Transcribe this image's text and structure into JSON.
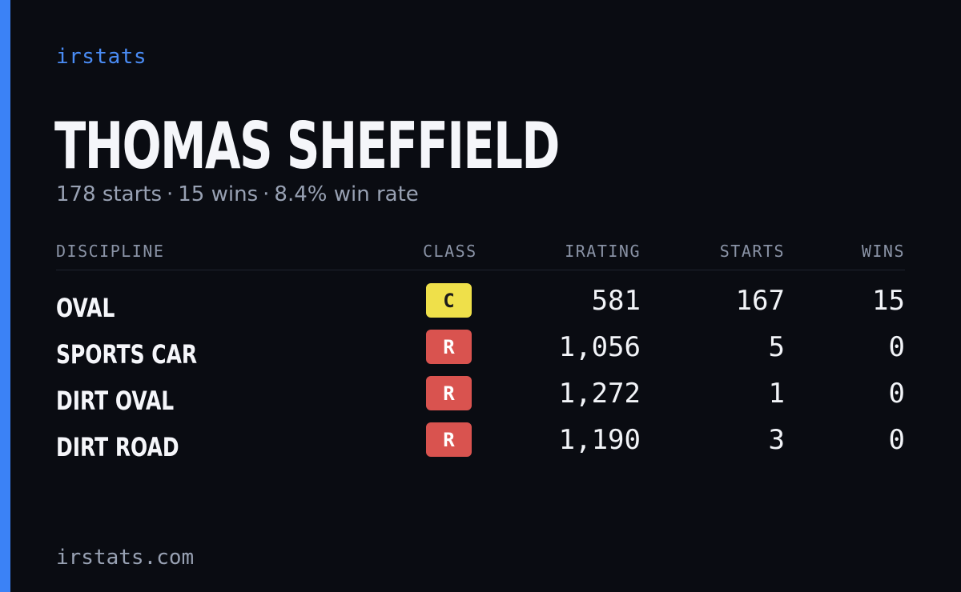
{
  "brand": "irstats",
  "driver": {
    "name": "THOMAS SHEFFIELD",
    "starts_text": "178 starts",
    "wins_text": "15 wins",
    "win_rate_text": "8.4% win rate",
    "separator": "·"
  },
  "table": {
    "headers": {
      "discipline": "DISCIPLINE",
      "class": "CLASS",
      "irating": "IRATING",
      "starts": "STARTS",
      "wins": "WINS"
    },
    "rows": [
      {
        "discipline": "OVAL",
        "class": "C",
        "irating": "581",
        "starts": "167",
        "wins": "15"
      },
      {
        "discipline": "SPORTS CAR",
        "class": "R",
        "irating": "1,056",
        "starts": "5",
        "wins": "0"
      },
      {
        "discipline": "DIRT OVAL",
        "class": "R",
        "irating": "1,272",
        "starts": "1",
        "wins": "0"
      },
      {
        "discipline": "DIRT ROAD",
        "class": "R",
        "irating": "1,190",
        "starts": "3",
        "wins": "0"
      }
    ]
  },
  "footer": "irstats.com",
  "colors": {
    "accent": "#3b82f6",
    "background": "#0a0c12",
    "class_c": "#efe04a",
    "class_r": "#d9534f"
  }
}
